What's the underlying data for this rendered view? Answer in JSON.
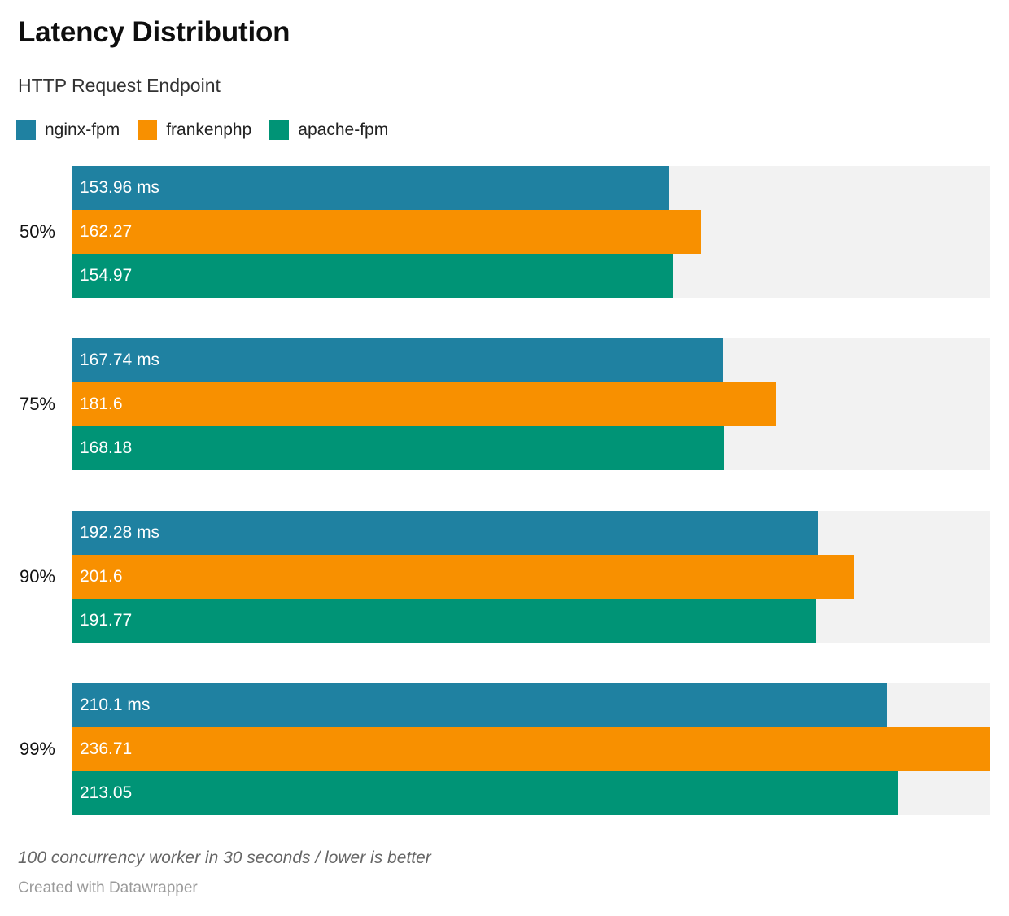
{
  "header": {
    "title": "Latency Distribution",
    "subtitle": "HTTP Request Endpoint"
  },
  "chart_data": {
    "type": "bar",
    "orientation": "horizontal",
    "title": "Latency Distribution",
    "subtitle": "HTTP Request Endpoint",
    "categories": [
      "50%",
      "75%",
      "90%",
      "99%"
    ],
    "series": [
      {
        "name": "nginx-fpm",
        "color": "#1f81a1",
        "values": [
          153.96,
          167.74,
          192.28,
          210.1
        ],
        "labels": [
          "153.96 ms",
          "167.74 ms",
          "192.28 ms",
          "210.1 ms"
        ]
      },
      {
        "name": "frankenphp",
        "color": "#f89000",
        "values": [
          162.27,
          181.6,
          201.6,
          236.71
        ],
        "labels": [
          "162.27",
          "181.6",
          "201.6",
          "236.71"
        ]
      },
      {
        "name": "apache-fpm",
        "color": "#009476",
        "values": [
          154.97,
          168.18,
          191.77,
          213.05
        ],
        "labels": [
          "154.97",
          "168.18",
          "191.77",
          "213.05"
        ]
      }
    ],
    "xlim": [
      0,
      236.71
    ],
    "value_unit": "ms",
    "track_color": "#f2f2f2",
    "legend_position": "top",
    "grid": false
  },
  "footer": {
    "note": "100 concurrency worker in 30 seconds / lower is better",
    "attribution": "Created with Datawrapper"
  }
}
